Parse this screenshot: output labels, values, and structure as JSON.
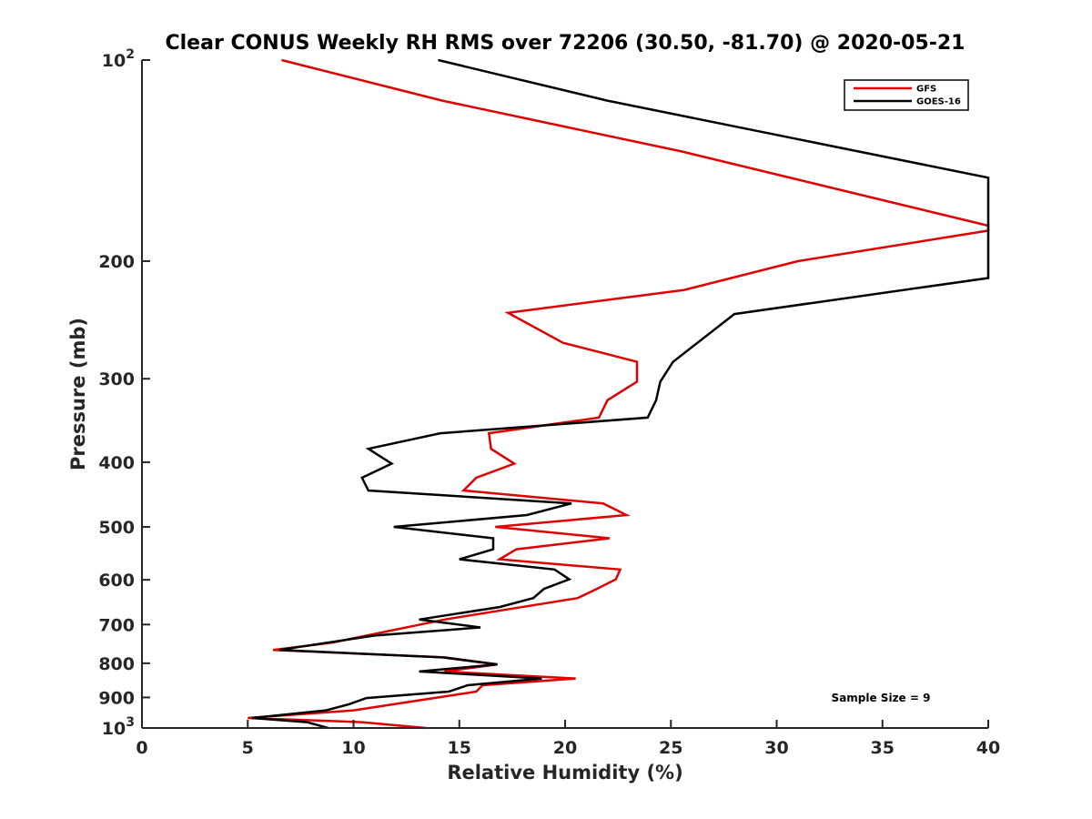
{
  "chart_data": {
    "type": "line",
    "title": "Clear CONUS Weekly RH RMS over 72206 (30.50, -81.70) @ 2020-05-21",
    "xlabel": "Relative Humidity (%)",
    "ylabel": "Pressure (mb)",
    "xlim": [
      0,
      40
    ],
    "ylim": [
      100,
      1000
    ],
    "yscale": "log",
    "y_reversed": true,
    "grid": false,
    "legend_position": "top-right",
    "xticks": [
      0,
      5,
      10,
      15,
      20,
      25,
      30,
      35,
      40
    ],
    "xtick_labels": [
      "0",
      "5",
      "10",
      "15",
      "20",
      "25",
      "30",
      "35",
      "40"
    ],
    "yticks": [
      100,
      200,
      300,
      400,
      500,
      600,
      700,
      800,
      900,
      1000
    ],
    "ytick_labels": [
      {
        "base": "10",
        "exp": "2"
      },
      {
        "base": "200",
        "exp": ""
      },
      {
        "base": "300",
        "exp": ""
      },
      {
        "base": "400",
        "exp": ""
      },
      {
        "base": "500",
        "exp": ""
      },
      {
        "base": "600",
        "exp": ""
      },
      {
        "base": "700",
        "exp": ""
      },
      {
        "base": "800",
        "exp": ""
      },
      {
        "base": "900",
        "exp": ""
      },
      {
        "base": "10",
        "exp": "3"
      }
    ],
    "annotation": "Sample Size = 9",
    "series": [
      {
        "name": "GFS",
        "color": "#e00000",
        "points": [
          [
            6.6,
            100
          ],
          [
            14.2,
            115
          ],
          [
            25.5,
            137
          ],
          [
            40.0,
            177
          ],
          [
            40.0,
            180
          ],
          [
            31.0,
            200
          ],
          [
            25.6,
            221
          ],
          [
            17.3,
            239
          ],
          [
            19.9,
            265
          ],
          [
            23.4,
            283
          ],
          [
            23.4,
            303
          ],
          [
            22.0,
            323
          ],
          [
            21.6,
            343
          ],
          [
            16.4,
            362
          ],
          [
            16.5,
            382
          ],
          [
            17.6,
            402
          ],
          [
            15.8,
            422
          ],
          [
            15.2,
            441
          ],
          [
            21.8,
            461
          ],
          [
            22.9,
            480
          ],
          [
            16.7,
            500
          ],
          [
            22.1,
            520
          ],
          [
            17.7,
            540
          ],
          [
            16.9,
            559
          ],
          [
            22.6,
            579
          ],
          [
            22.4,
            599
          ],
          [
            21.5,
            619
          ],
          [
            20.6,
            639
          ],
          [
            14.3,
            688
          ],
          [
            9.0,
            745
          ],
          [
            6.2,
            764
          ],
          [
            14.3,
            784
          ],
          [
            16.8,
            803
          ],
          [
            14.3,
            823
          ],
          [
            20.5,
            843
          ],
          [
            16.1,
            863
          ],
          [
            15.8,
            882
          ],
          [
            10.0,
            941
          ],
          [
            5.0,
            966
          ],
          [
            10.4,
            980
          ],
          [
            13.4,
            1000
          ]
        ]
      },
      {
        "name": "GOES-16",
        "color": "#000000",
        "points": [
          [
            14.0,
            100
          ],
          [
            22.0,
            115
          ],
          [
            40.0,
            150
          ],
          [
            40.0,
            212
          ],
          [
            28.0,
            240
          ],
          [
            25.1,
            283
          ],
          [
            24.5,
            303
          ],
          [
            24.3,
            323
          ],
          [
            23.9,
            343
          ],
          [
            14.1,
            362
          ],
          [
            10.7,
            382
          ],
          [
            11.8,
            402
          ],
          [
            10.4,
            422
          ],
          [
            10.7,
            441
          ],
          [
            20.3,
            461
          ],
          [
            18.2,
            480
          ],
          [
            11.9,
            500
          ],
          [
            16.6,
            520
          ],
          [
            16.6,
            540
          ],
          [
            15.0,
            559
          ],
          [
            19.5,
            579
          ],
          [
            20.2,
            599
          ],
          [
            19.0,
            619
          ],
          [
            18.5,
            639
          ],
          [
            16.9,
            659
          ],
          [
            13.1,
            688
          ],
          [
            16.0,
            707
          ],
          [
            11.0,
            727
          ],
          [
            6.5,
            764
          ],
          [
            14.2,
            784
          ],
          [
            16.8,
            803
          ],
          [
            13.1,
            823
          ],
          [
            18.9,
            843
          ],
          [
            15.4,
            863
          ],
          [
            14.5,
            882
          ],
          [
            10.6,
            902
          ],
          [
            9.8,
            921
          ],
          [
            8.7,
            941
          ],
          [
            5.2,
            966
          ],
          [
            7.8,
            980
          ],
          [
            8.8,
            1000
          ]
        ]
      }
    ]
  }
}
